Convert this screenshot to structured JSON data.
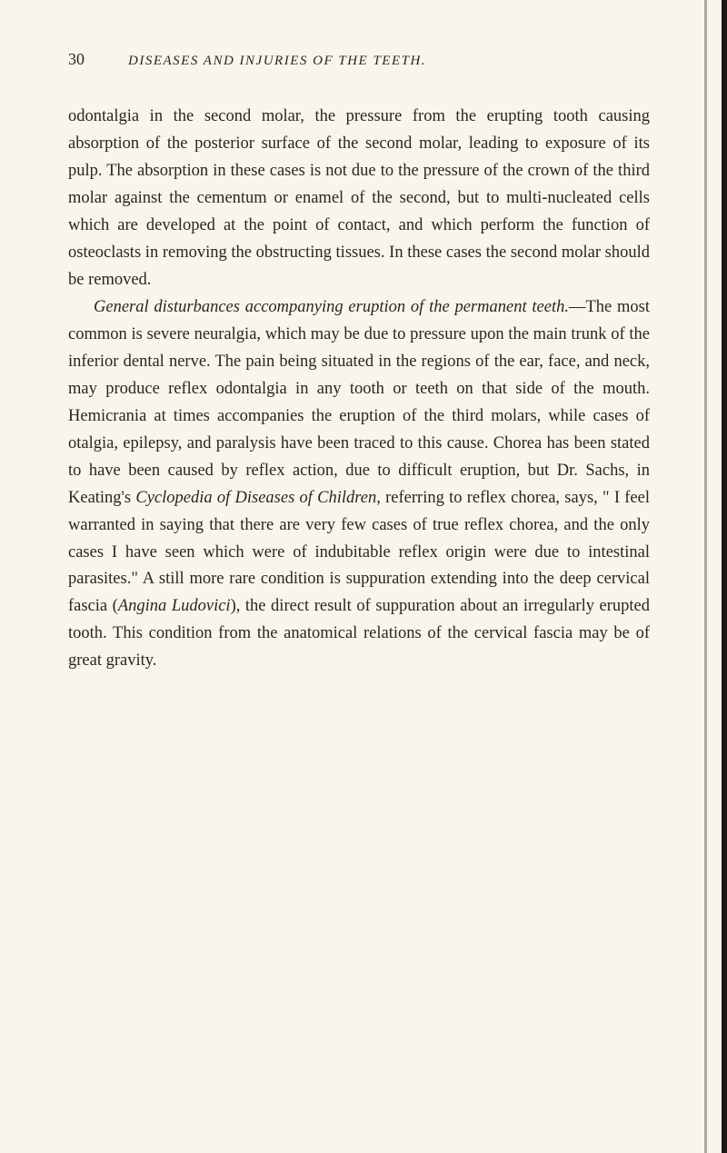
{
  "page": {
    "number": "30",
    "runningTitle": "DISEASES AND INJURIES OF THE TEETH."
  },
  "paragraphs": {
    "p1": {
      "text": "odontalgia in the second molar, the pressure from the erupting tooth causing absorption of the posterior surface of the second molar, leading to exposure of its pulp. The absorption in these cases is not due to the pressure of the crown of the third molar against the cementum or enamel of the second, but to multi-nucleated cells which are developed at the point of contact, and which perform the function of osteoclasts in removing the obstructing tissues. In these cases the second molar should be removed."
    },
    "p2": {
      "leadItalic": "General disturbances accompanying eruption of the permanent teeth.",
      "afterLead": "—The most common is severe neuralgia, which may be due to pressure upon the main trunk of the inferior dental nerve. The pain being situated in the regions of the ear, face, and neck, may produce reflex odontalgia in any tooth or teeth on that side of the mouth. Hemicrania at times accompanies the eruption of the third molars, while cases of otalgia, epilepsy, and paralysis have been traced to this cause. Chorea has been stated to have been caused by reflex action, due to difficult eruption, but Dr. Sachs, in Keating's ",
      "ital1": "Cyclopedia of Diseases of Children",
      "mid1": ", referring to reflex chorea, says, \" I feel warranted in saying that there are very few cases of true reflex chorea, and the only cases I have seen which were of indubitable reflex origin were due to intestinal parasites.\" A still more rare condition is suppuration extending into the deep cervical fascia (",
      "ital2": "Angina Ludovici",
      "tail": "), the direct result of suppuration about an irregularly erupted tooth. This condition from the anatomical relations of the cervical fascia may be of great gravity."
    }
  },
  "style": {
    "background": "#f9f5ed",
    "textColor": "#2a2520"
  }
}
